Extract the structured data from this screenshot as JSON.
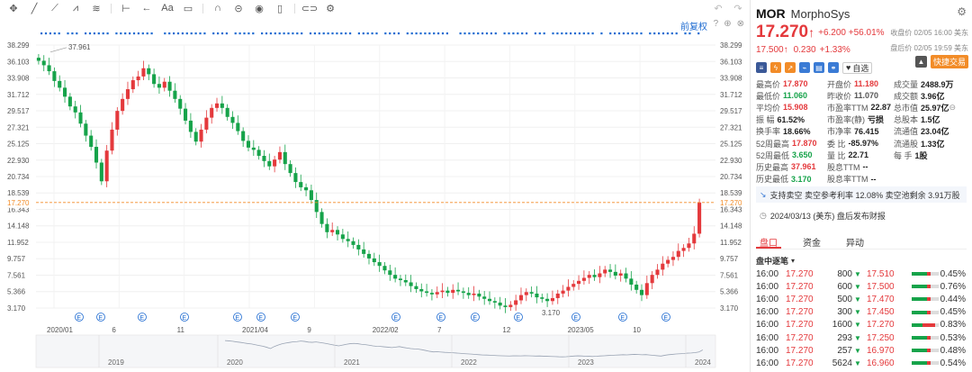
{
  "toolbar": {
    "icons": [
      "move-icon",
      "line-icon",
      "ray-icon",
      "pattern-icon",
      "fib-icon",
      "measure-icon",
      "arrow-icon",
      "text-icon",
      "note-icon",
      "magnet-icon",
      "lock-icon",
      "eye-icon",
      "trash-icon",
      "link-icon",
      "settings-icon"
    ],
    "right_icons": [
      "undo-icon",
      "redo-icon"
    ],
    "fq_label": "前复权",
    "fq_icons": [
      "help-icon",
      "add-icon",
      "close-icon"
    ]
  },
  "chart": {
    "y_ticks": [
      "38.299",
      "36.103",
      "33.908",
      "31.712",
      "29.517",
      "27.321",
      "25.125",
      "22.930",
      "20.734",
      "18.539",
      "16.343",
      "14.148",
      "11.952",
      "9.757",
      "7.561",
      "5.366",
      "3.170"
    ],
    "current_price_label": "17.270",
    "x_labels": [
      "2020/01",
      "6",
      "11",
      "2021/04",
      "9",
      "2022/02",
      "7",
      "12",
      "2023/05",
      "10"
    ],
    "nav_years": [
      "2019",
      "2020",
      "2021",
      "2022",
      "2023",
      "2024"
    ],
    "high_label": "37.961",
    "low_label": "3.170",
    "event_marker": "E",
    "up_color": "#e4393c",
    "down_color": "#16a34a",
    "marker_color": "#1e6bd1"
  },
  "chart_data": {
    "type": "candlestick",
    "ylim": [
      3.17,
      38.299
    ],
    "current": 17.27,
    "high": 37.961,
    "low": 3.17,
    "x": [
      "2020/01",
      "6",
      "11",
      "2021/04",
      "9",
      "2022/02",
      "7",
      "12",
      "2023/05",
      "10"
    ],
    "closes": [
      36.2,
      35.6,
      34.8,
      33.5,
      32.6,
      31.4,
      30.1,
      29.3,
      27.8,
      26.2,
      24.7,
      22.6,
      20.1,
      24.2,
      27.0,
      29.5,
      31.1,
      32.4,
      33.6,
      34.1,
      35.2,
      34.4,
      33.1,
      32.6,
      33.4,
      32.2,
      31.1,
      29.8,
      28.2,
      26.7,
      25.4,
      27.0,
      28.6,
      29.9,
      30.5,
      29.9,
      28.7,
      27.9,
      26.8,
      25.5,
      24.6,
      24.3,
      23.5,
      22.8,
      22.1,
      23.0,
      24.0,
      22.4,
      21.2,
      20.0,
      19.3,
      18.9,
      17.6,
      16.0,
      14.4,
      13.3,
      13.6,
      13.0,
      12.4,
      12.1,
      11.6,
      11.0,
      10.4,
      9.8,
      9.3,
      8.8,
      8.2,
      7.6,
      7.1,
      6.9,
      6.6,
      6.1,
      5.7,
      5.4,
      5.2,
      5.0,
      5.3,
      5.5,
      5.2,
      5.6,
      5.4,
      5.2,
      4.9,
      5.1,
      4.7,
      4.4,
      4.1,
      3.9,
      3.5,
      3.3,
      3.6,
      4.2,
      4.9,
      5.3,
      5.1,
      4.6,
      4.4,
      4.1,
      4.5,
      5.1,
      5.5,
      6.0,
      6.4,
      6.8,
      7.2,
      7.6,
      7.3,
      7.8,
      8.3,
      8.0,
      7.5,
      7.8,
      7.1,
      6.3,
      5.6,
      4.9,
      6.5,
      7.6,
      8.3,
      9.1,
      9.6,
      10.0,
      10.8,
      11.2,
      11.8,
      13.1,
      17.27
    ]
  },
  "quote": {
    "ticker": "MOR",
    "name": "MorphoSys",
    "price": "17.270",
    "arrow": "↑",
    "change": "+6.200",
    "change_pct": "+56.01%",
    "close_time": "收盘价 02/05 16:00 美东",
    "after_price": "17.500",
    "after_change": "0.230",
    "after_change_pct": "+1.33%",
    "after_time": "盘后价 02/05 19:59 美东",
    "watch_label": "自选",
    "quick_trade": "快捷交易",
    "badges": [
      {
        "name": "us-flag-icon",
        "color": "#3b5998",
        "glyph": "≡"
      },
      {
        "name": "lightning-icon",
        "color": "#f28c28",
        "glyph": "ϟ"
      },
      {
        "name": "chart-badge-icon",
        "color": "#f28c28",
        "glyph": "↗"
      },
      {
        "name": "graph-badge-icon",
        "color": "#3a7bd5",
        "glyph": "⌁"
      },
      {
        "name": "document-icon",
        "color": "#3a7bd5",
        "glyph": "▤"
      },
      {
        "name": "link-badge-icon",
        "color": "#3a7bd5",
        "glyph": "⚭"
      }
    ]
  },
  "stats": [
    {
      "k": "最高价",
      "v": "17.870",
      "c": "up"
    },
    {
      "k": "开盘价",
      "v": "11.180",
      "c": "up"
    },
    {
      "k": "成交量",
      "v": "2488.9万",
      "c": ""
    },
    {
      "k": "最低价",
      "v": "11.060",
      "c": "down"
    },
    {
      "k": "昨收价",
      "v": "11.070",
      "c": "muted"
    },
    {
      "k": "成交额",
      "v": "3.96亿",
      "c": ""
    },
    {
      "k": "平均价",
      "v": "15.908",
      "c": "up"
    },
    {
      "k": "市盈率TTM",
      "v": "22.87",
      "c": ""
    },
    {
      "k": "总市值",
      "v": "25.97亿",
      "c": ""
    },
    {
      "k": "振  幅",
      "v": "61.52%",
      "c": ""
    },
    {
      "k": "市盈率(静)",
      "v": "亏损",
      "c": ""
    },
    {
      "k": "总股本",
      "v": "1.5亿",
      "c": ""
    },
    {
      "k": "换手率",
      "v": "18.66%",
      "c": ""
    },
    {
      "k": "市净率",
      "v": "76.415",
      "c": ""
    },
    {
      "k": "流通值",
      "v": "23.04亿",
      "c": ""
    },
    {
      "k": "52周最高",
      "v": "17.870",
      "c": "up"
    },
    {
      "k": "委  比",
      "v": "-85.97%",
      "c": ""
    },
    {
      "k": "流通股",
      "v": "1.33亿",
      "c": ""
    },
    {
      "k": "52周最低",
      "v": "3.650",
      "c": "down"
    },
    {
      "k": "量  比",
      "v": "22.71",
      "c": ""
    },
    {
      "k": "每  手",
      "v": "1股",
      "c": ""
    },
    {
      "k": "历史最高",
      "v": "37.961",
      "c": "up"
    },
    {
      "k": "股息TTM",
      "v": "--",
      "c": ""
    },
    {
      "k": "",
      "v": "",
      "c": ""
    },
    {
      "k": "历史最低",
      "v": "3.170",
      "c": "down"
    },
    {
      "k": "股息率TTM",
      "v": "--",
      "c": ""
    },
    {
      "k": "",
      "v": "",
      "c": ""
    }
  ],
  "short_box": "支持卖空 卖空参考利率 12.08% 卖空池剩余 3.91万股",
  "earnings_box": "2024/03/13 (美东) 盘后发布财报",
  "tabs": [
    "盘口",
    "资金",
    "异动"
  ],
  "tick_header": "盘中逐笔",
  "ticks": [
    {
      "t": "16:00",
      "p": "17.270",
      "vol": "800",
      "p2": "17.510",
      "c2": "up",
      "g": 0.55,
      "r": 0.15,
      "pct": "0.45%"
    },
    {
      "t": "16:00",
      "p": "17.270",
      "vol": "600",
      "p2": "17.500",
      "c2": "up",
      "g": 0.55,
      "r": 0.15,
      "pct": "0.76%"
    },
    {
      "t": "16:00",
      "p": "17.270",
      "vol": "500",
      "p2": "17.470",
      "c2": "up",
      "g": 0.55,
      "r": 0.15,
      "pct": "0.44%"
    },
    {
      "t": "16:00",
      "p": "17.270",
      "vol": "300",
      "p2": "17.450",
      "c2": "up",
      "g": 0.55,
      "r": 0.15,
      "pct": "0.45%"
    },
    {
      "t": "16:00",
      "p": "17.270",
      "vol": "1600",
      "p2": "17.270",
      "c2": "up",
      "g": 0.4,
      "r": 0.45,
      "pct": "0.83%"
    },
    {
      "t": "16:00",
      "p": "17.270",
      "vol": "293",
      "p2": "17.250",
      "c2": "up",
      "g": 0.55,
      "r": 0.15,
      "pct": "0.53%"
    },
    {
      "t": "16:00",
      "p": "17.270",
      "vol": "257",
      "p2": "16.970",
      "c2": "up",
      "g": 0.55,
      "r": 0.15,
      "pct": "0.48%"
    },
    {
      "t": "16:00",
      "p": "17.270",
      "vol": "5624",
      "p2": "16.960",
      "c2": "up",
      "g": 0.55,
      "r": 0.15,
      "pct": "0.54%"
    }
  ]
}
